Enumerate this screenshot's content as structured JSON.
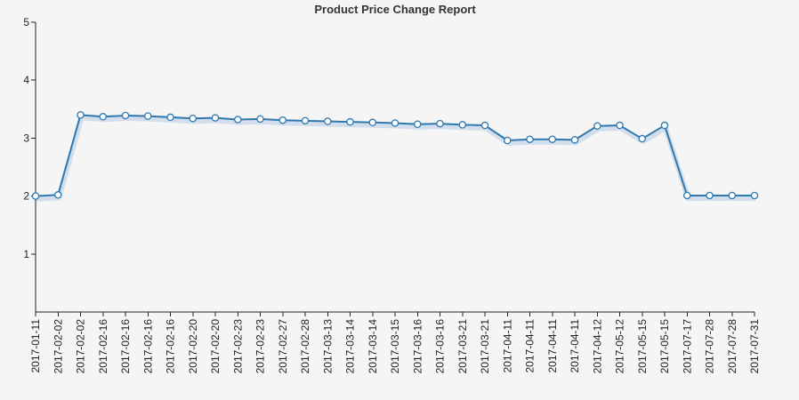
{
  "colors": {
    "background": "#f5f5f5",
    "line": "#2f79b0",
    "area_shadow": "#a9c4e0",
    "marker_fill": "#ffffff",
    "marker_stroke": "#2f79b0",
    "axis": "#222222"
  },
  "chart_data": {
    "type": "line",
    "title": "Product Price Change Report",
    "xlabel": "",
    "ylabel": "",
    "ylim": [
      0,
      5
    ],
    "yticks": [
      1,
      2,
      3,
      4,
      5
    ],
    "grid": false,
    "legend": "none",
    "categories": [
      "2017-01-11",
      "2017-02-02",
      "2017-02-02",
      "2017-02-16",
      "2017-02-16",
      "2017-02-16",
      "2017-02-16",
      "2017-02-20",
      "2017-02-20",
      "2017-02-23",
      "2017-02-23",
      "2017-02-27",
      "2017-02-28",
      "2017-03-13",
      "2017-03-14",
      "2017-03-14",
      "2017-03-15",
      "2017-03-16",
      "2017-03-16",
      "2017-03-21",
      "2017-03-21",
      "2017-04-11",
      "2017-04-11",
      "2017-04-11",
      "2017-04-11",
      "2017-04-12",
      "2017-05-12",
      "2017-05-15",
      "2017-05-15",
      "2017-07-17",
      "2017-07-28",
      "2017-07-28",
      "2017-07-31"
    ],
    "series": [
      {
        "values": [
          2.0,
          2.02,
          3.4,
          3.37,
          3.39,
          3.38,
          3.36,
          3.34,
          3.35,
          3.32,
          3.33,
          3.31,
          3.3,
          3.29,
          3.28,
          3.27,
          3.26,
          3.24,
          3.25,
          3.23,
          3.22,
          2.96,
          2.98,
          2.98,
          2.97,
          3.21,
          3.22,
          2.99,
          3.22,
          2.01,
          2.01,
          2.01,
          2.01
        ]
      }
    ]
  }
}
